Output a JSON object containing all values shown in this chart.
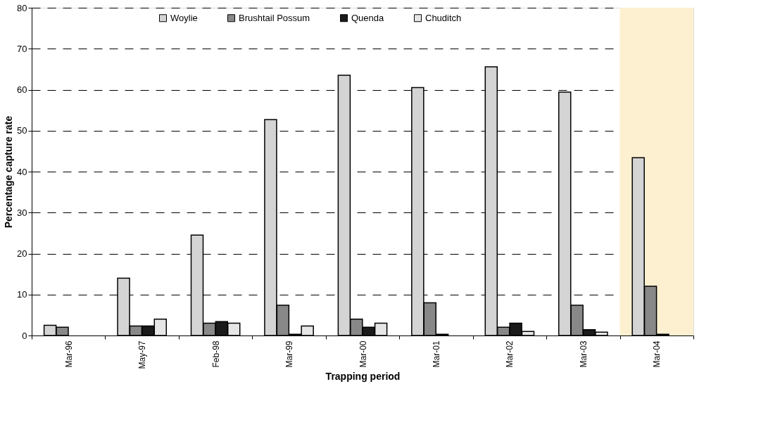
{
  "chart_data": {
    "type": "bar",
    "xlabel": "Trapping period",
    "ylabel": "Percentage capture rate",
    "categories": [
      "Mar-96",
      "May-97",
      "Feb-98",
      "Mar-99",
      "Mar-00",
      "Mar-01",
      "Mar-02",
      "Mar-03",
      "Mar-04"
    ],
    "series": [
      {
        "name": "Woylie",
        "color": "#d4d4d4",
        "values": [
          2.5,
          14,
          24.5,
          52.7,
          63.5,
          60.5,
          65.6,
          59.4,
          43.4
        ]
      },
      {
        "name": "Brushtail Possum",
        "color": "#888888",
        "values": [
          2,
          2.3,
          3,
          7.4,
          4,
          8,
          2,
          7.4,
          12
        ]
      },
      {
        "name": "Quenda",
        "color": "#1a1a1a",
        "values": [
          null,
          2.3,
          3.4,
          0.3,
          2,
          0.3,
          3,
          1.4,
          0.3
        ]
      },
      {
        "name": "Chuditch",
        "color": "#e6e6e6",
        "values": [
          null,
          4,
          3,
          2.3,
          3,
          null,
          1,
          0.8,
          null
        ]
      }
    ],
    "ylim": [
      0,
      80
    ],
    "yticks": [
      0,
      10,
      20,
      30,
      40,
      50,
      60,
      70,
      80
    ],
    "grid": "y",
    "legend": "top",
    "bands": [
      {
        "axis": "x",
        "from": "Mar-04",
        "to": "Mar-04",
        "color": "#fdf0d0"
      }
    ]
  }
}
